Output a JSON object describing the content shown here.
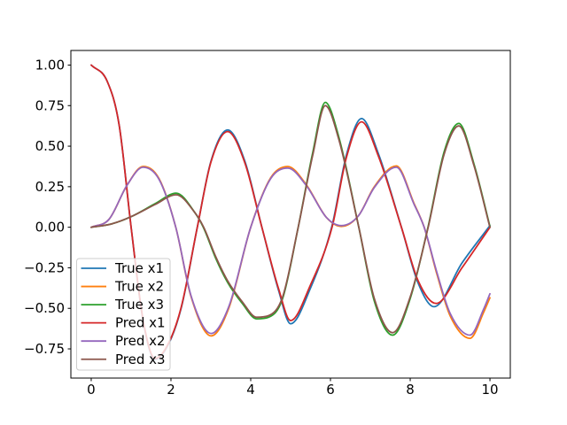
{
  "figure": {
    "kind": "matplotlib-line-plot",
    "background": "#ffffff",
    "title": ""
  },
  "chart_data": {
    "type": "line",
    "title": "",
    "xlabel": "",
    "ylabel": "",
    "grid": false,
    "xlim": [
      -0.51,
      10.51
    ],
    "ylim": [
      -0.93,
      1.09
    ],
    "x_ticks": {
      "values": [
        0,
        2,
        4,
        6,
        8,
        10
      ],
      "labels": [
        "0",
        "2",
        "4",
        "6",
        "8",
        "10"
      ]
    },
    "y_ticks": {
      "values": [
        1.0,
        0.75,
        0.5,
        0.25,
        0.0,
        -0.25,
        -0.5,
        -0.75
      ],
      "labels": [
        "1.00",
        "0.75",
        "0.50",
        "0.25",
        "0.00",
        "−0.25",
        "−0.50",
        "−0.75"
      ]
    },
    "legend": {
      "position": "lower left",
      "frame": true,
      "frame_color": "#cccccc",
      "frame_bg": "#ffffff",
      "frame_opacity": 0.8
    },
    "axes_color": "#000000",
    "series": [
      {
        "name": "True x1",
        "color": "#1f77b4",
        "x": [
          0,
          0.4,
          0.7,
          1.0,
          1.3,
          1.6,
          1.95,
          2.26,
          2.66,
          3.0,
          3.42,
          3.85,
          4.28,
          4.7,
          5.0,
          5.5,
          6.04,
          6.4,
          6.78,
          7.2,
          7.78,
          8.2,
          8.6,
          9.3,
          10
        ],
        "y": [
          1.0,
          0.9,
          0.63,
          0.0,
          -0.575,
          -0.815,
          -0.715,
          -0.495,
          0.0,
          0.405,
          0.6,
          0.41,
          0.0,
          -0.39,
          -0.595,
          -0.375,
          0.01,
          0.445,
          0.67,
          0.455,
          0.0,
          -0.345,
          -0.49,
          -0.22,
          0.01
        ]
      },
      {
        "name": "True x2",
        "color": "#ff7f0e",
        "x": [
          0,
          0.45,
          0.9,
          1.3,
          1.7,
          2.12,
          2.5,
          3.01,
          3.45,
          4.0,
          4.5,
          4.93,
          5.4,
          5.9,
          6.27,
          6.7,
          7.1,
          7.65,
          8.1,
          8.35,
          8.67,
          9.0,
          9.5,
          9.85,
          10
        ],
        "y": [
          0.0,
          0.05,
          0.26,
          0.375,
          0.3,
          0.0,
          -0.425,
          -0.67,
          -0.5,
          0.0,
          0.305,
          0.375,
          0.26,
          0.06,
          0.005,
          0.07,
          0.25,
          0.378,
          0.145,
          0.0,
          -0.29,
          -0.545,
          -0.685,
          -0.52,
          -0.435
        ]
      },
      {
        "name": "True x3",
        "color": "#2ca02c",
        "x": [
          0,
          0.5,
          1.0,
          1.6,
          2.13,
          2.6,
          2.82,
          3.12,
          3.42,
          3.79,
          4.15,
          4.45,
          4.8,
          5.19,
          5.55,
          5.87,
          6.2,
          6.71,
          7.1,
          7.56,
          8.0,
          8.45,
          8.85,
          9.22,
          9.6,
          10
        ],
        "y": [
          0.0,
          0.02,
          0.065,
          0.145,
          0.21,
          0.09,
          -0.005,
          -0.19,
          -0.34,
          -0.47,
          -0.565,
          -0.555,
          -0.44,
          0.0,
          0.455,
          0.77,
          0.565,
          0.0,
          -0.455,
          -0.665,
          -0.44,
          0.005,
          0.465,
          0.64,
          0.39,
          0.005
        ]
      },
      {
        "name": "Pred x1",
        "color": "#d62728",
        "x": [
          0,
          0.4,
          0.7,
          1.0,
          1.3,
          1.6,
          1.95,
          2.26,
          2.66,
          3.0,
          3.42,
          3.85,
          4.28,
          4.7,
          5.0,
          5.5,
          6.04,
          6.4,
          6.78,
          7.2,
          7.78,
          8.2,
          8.65,
          9.3,
          10
        ],
        "y": [
          1.0,
          0.9,
          0.63,
          0.0,
          -0.57,
          -0.81,
          -0.71,
          -0.49,
          0.0,
          0.4,
          0.59,
          0.4,
          0.0,
          -0.38,
          -0.575,
          -0.355,
          0.0,
          0.43,
          0.65,
          0.44,
          0.0,
          -0.33,
          -0.47,
          -0.25,
          0.0
        ]
      },
      {
        "name": "Pred x2",
        "color": "#9467bd",
        "x": [
          0,
          0.45,
          0.9,
          1.3,
          1.7,
          2.12,
          2.5,
          3.01,
          3.45,
          4.0,
          4.5,
          4.93,
          5.4,
          5.9,
          6.27,
          6.7,
          7.1,
          7.65,
          8.1,
          8.35,
          8.67,
          9.0,
          9.5,
          9.85,
          10
        ],
        "y": [
          0.0,
          0.05,
          0.26,
          0.37,
          0.295,
          0.0,
          -0.42,
          -0.655,
          -0.49,
          0.0,
          0.3,
          0.365,
          0.255,
          0.06,
          0.01,
          0.07,
          0.245,
          0.37,
          0.14,
          0.0,
          -0.28,
          -0.53,
          -0.665,
          -0.5,
          -0.41
        ]
      },
      {
        "name": "Pred x3",
        "color": "#8c564b",
        "x": [
          0,
          0.5,
          1.0,
          1.6,
          2.13,
          2.6,
          2.82,
          3.12,
          3.42,
          3.79,
          4.15,
          4.45,
          4.8,
          5.19,
          5.55,
          5.87,
          6.2,
          6.71,
          7.1,
          7.56,
          8.0,
          8.45,
          8.85,
          9.22,
          9.6,
          10
        ],
        "y": [
          0.0,
          0.02,
          0.065,
          0.14,
          0.2,
          0.09,
          0.0,
          -0.18,
          -0.33,
          -0.46,
          -0.555,
          -0.545,
          -0.43,
          0.0,
          0.44,
          0.75,
          0.55,
          0.0,
          -0.44,
          -0.65,
          -0.43,
          0.0,
          0.45,
          0.625,
          0.38,
          0.0
        ]
      }
    ]
  }
}
